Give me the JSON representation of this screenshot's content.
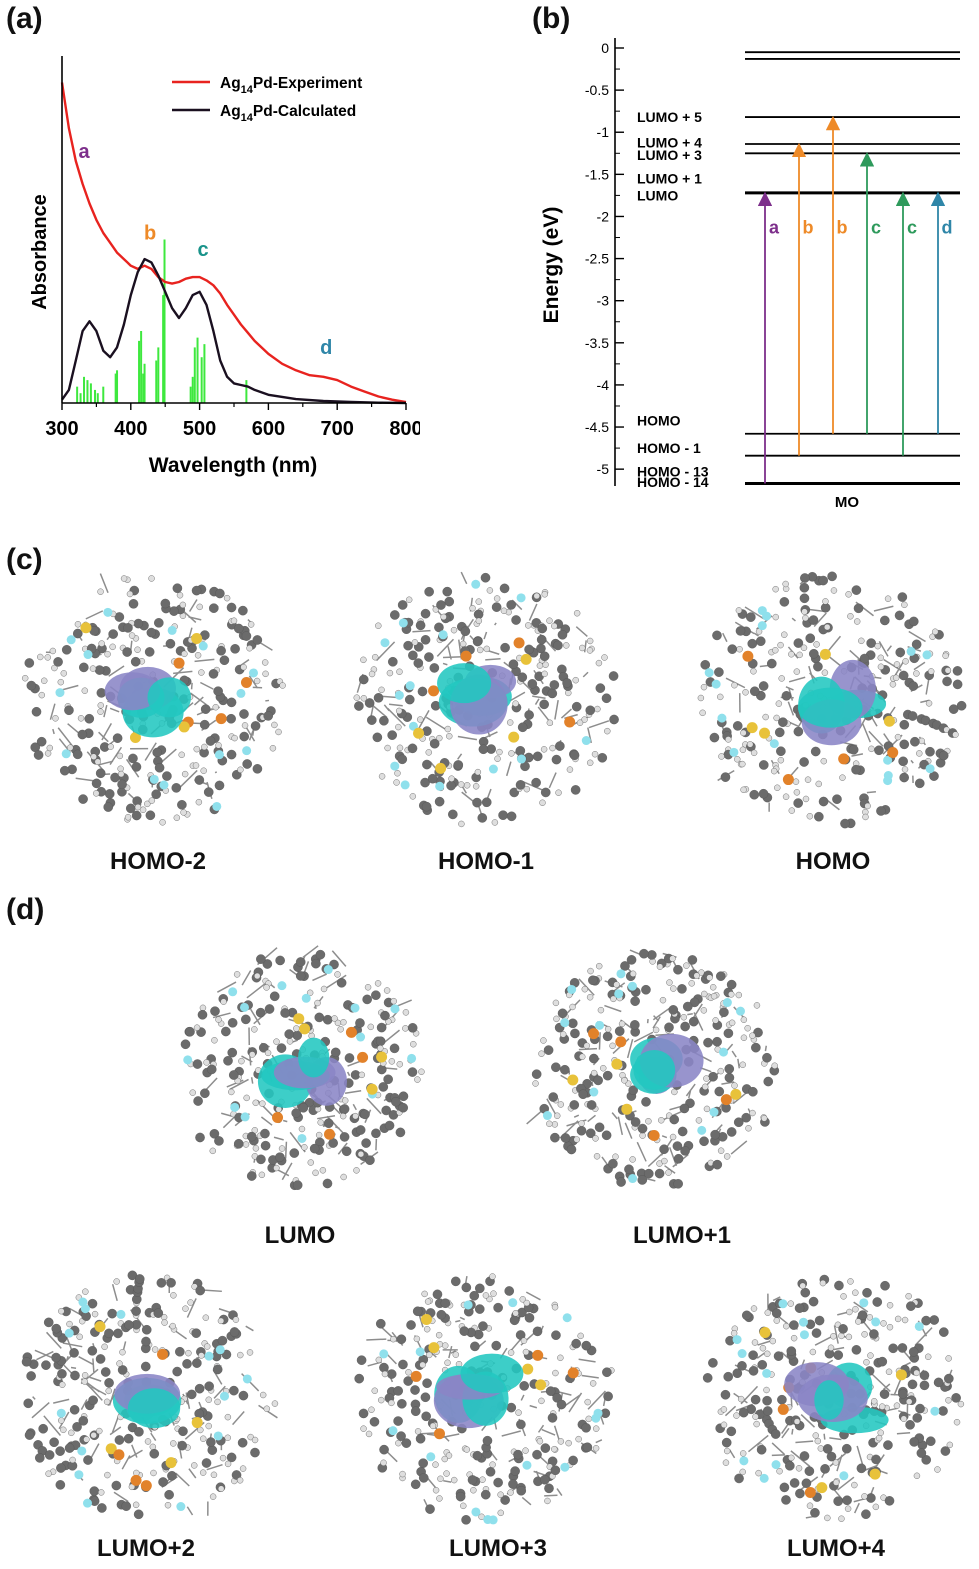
{
  "panels": {
    "a": "(a)",
    "b": "(b)",
    "c": "(c)",
    "d": "(d)"
  },
  "chart_data": [
    {
      "type": "line",
      "xlabel": "Wavelength (nm)",
      "ylabel": "Absorbance",
      "xlim": [
        300,
        800
      ],
      "x_ticks": [
        "300",
        "400",
        "500",
        "600",
        "700",
        "800"
      ],
      "legend": {
        "placement": "top-right",
        "entries": [
          {
            "name": "Ag14Pd-Experiment",
            "base": "Ag",
            "sub": "14",
            "rest": "Pd-Experiment",
            "color": "#e8231f"
          },
          {
            "name": "Ag14Pd-Calculated",
            "base": "Ag",
            "sub": "14",
            "rest": "Pd-Calculated",
            "color": "#1a1020"
          }
        ]
      },
      "series": [
        {
          "name": "Ag14Pd-Experiment",
          "color": "#e8231f",
          "x": [
            300,
            310,
            320,
            330,
            340,
            350,
            360,
            370,
            380,
            390,
            400,
            410,
            420,
            430,
            440,
            450,
            460,
            470,
            480,
            490,
            500,
            510,
            520,
            530,
            540,
            550,
            560,
            570,
            580,
            590,
            600,
            620,
            640,
            660,
            680,
            700,
            720,
            740,
            760,
            780,
            800
          ],
          "y": [
            0.98,
            0.84,
            0.74,
            0.67,
            0.61,
            0.56,
            0.52,
            0.49,
            0.46,
            0.44,
            0.42,
            0.41,
            0.42,
            0.41,
            0.385,
            0.37,
            0.365,
            0.37,
            0.38,
            0.385,
            0.385,
            0.375,
            0.36,
            0.335,
            0.3,
            0.27,
            0.24,
            0.215,
            0.19,
            0.17,
            0.15,
            0.12,
            0.1,
            0.085,
            0.08,
            0.07,
            0.05,
            0.035,
            0.02,
            0.01,
            0.003
          ]
        },
        {
          "name": "Ag14Pd-Calculated",
          "color": "#1a1020",
          "x": [
            300,
            310,
            320,
            330,
            340,
            350,
            360,
            370,
            380,
            390,
            400,
            410,
            420,
            430,
            440,
            450,
            460,
            470,
            480,
            490,
            500,
            510,
            520,
            530,
            540,
            550,
            560,
            570,
            580,
            600,
            640,
            680,
            720,
            760,
            800
          ],
          "y": [
            0.01,
            0.04,
            0.13,
            0.22,
            0.25,
            0.22,
            0.16,
            0.14,
            0.17,
            0.24,
            0.33,
            0.4,
            0.44,
            0.43,
            0.39,
            0.34,
            0.29,
            0.26,
            0.29,
            0.33,
            0.34,
            0.3,
            0.22,
            0.13,
            0.08,
            0.06,
            0.055,
            0.05,
            0.04,
            0.025,
            0.012,
            0.006,
            0.003,
            0.001,
            0.0
          ]
        }
      ],
      "sticks": {
        "color": "#3ee83e",
        "x": [
          322,
          327,
          332,
          337,
          342,
          348,
          352,
          360,
          378,
          380,
          412,
          415,
          418,
          420,
          437,
          440,
          447,
          449,
          487,
          490,
          493,
          497,
          503,
          507,
          568
        ],
        "y": [
          0.05,
          0.03,
          0.08,
          0.07,
          0.06,
          0.04,
          0.03,
          0.05,
          0.09,
          0.1,
          0.19,
          0.22,
          0.09,
          0.12,
          0.13,
          0.17,
          0.33,
          0.5,
          0.05,
          0.08,
          0.17,
          0.2,
          0.14,
          0.18,
          0.07
        ]
      },
      "annotations": [
        {
          "text": "a",
          "x": 332,
          "y": 0.75,
          "color": "#7d2f8b"
        },
        {
          "text": "b",
          "x": 428,
          "y": 0.5,
          "color": "#ee8a28"
        },
        {
          "text": "c",
          "x": 505,
          "y": 0.45,
          "color": "#19938a"
        },
        {
          "text": "d",
          "x": 684,
          "y": 0.15,
          "color": "#2f86a8"
        }
      ]
    },
    {
      "type": "energy-level-diagram",
      "ylabel": "Energy (eV)",
      "xlabel": "MO",
      "ylim": [
        -5.2,
        0.1
      ],
      "y_ticks": [
        "0",
        "-0.5",
        "-1",
        "-1.5",
        "-2",
        "-2.5",
        "-3",
        "-3.5",
        "-4",
        "-4.5",
        "-5"
      ],
      "levels": [
        -0.05,
        -0.13,
        -0.82,
        -1.14,
        -1.25,
        -1.72,
        -4.58,
        -4.84,
        -5.17
      ],
      "level_labels": [
        {
          "text": "LUMO + 5",
          "energy": -0.82
        },
        {
          "text": "LUMO + 4",
          "energy": -1.12
        },
        {
          "text": "LUMO + 3",
          "energy": -1.27
        },
        {
          "text": "LUMO + 1",
          "energy": -1.55
        },
        {
          "text": "LUMO",
          "energy": -1.75
        },
        {
          "text": "HOMO",
          "energy": -4.42
        },
        {
          "text": "HOMO - 1",
          "energy": -4.75
        },
        {
          "text": "HOMO - 13",
          "energy": -5.03
        },
        {
          "text": "HOMO - 14",
          "energy": -5.15
        }
      ],
      "transitions": [
        {
          "label": "a",
          "from": -5.17,
          "to": -1.72,
          "color": "#7d2f8b"
        },
        {
          "label": "b",
          "from": -4.84,
          "to": -1.14,
          "color": "#ee8a28"
        },
        {
          "label": "b",
          "from": -4.58,
          "to": -0.82,
          "color": "#ee8a28"
        },
        {
          "label": "c",
          "from": -4.58,
          "to": -1.25,
          "color": "#2e9a5c"
        },
        {
          "label": "c",
          "from": -4.84,
          "to": -1.72,
          "color": "#2e9a5c"
        },
        {
          "label": "d",
          "from": -4.58,
          "to": -1.72,
          "color": "#2f86a8"
        }
      ]
    }
  ],
  "orbitals_c": [
    "HOMO-2",
    "HOMO-1",
    "HOMO"
  ],
  "orbitals_d": [
    "LUMO",
    "LUMO+1",
    "LUMO+2",
    "LUMO+3",
    "LUMO+4"
  ],
  "colors": {
    "lobe_positive": "#22c7c0",
    "lobe_negative": "#8a85c6",
    "carbon": "#6b6b6b",
    "hydrogen": "#dedede",
    "fluorine": "#8fe0ec",
    "phosphorus": "#e2822a",
    "sulfur": "#e8c23a"
  }
}
